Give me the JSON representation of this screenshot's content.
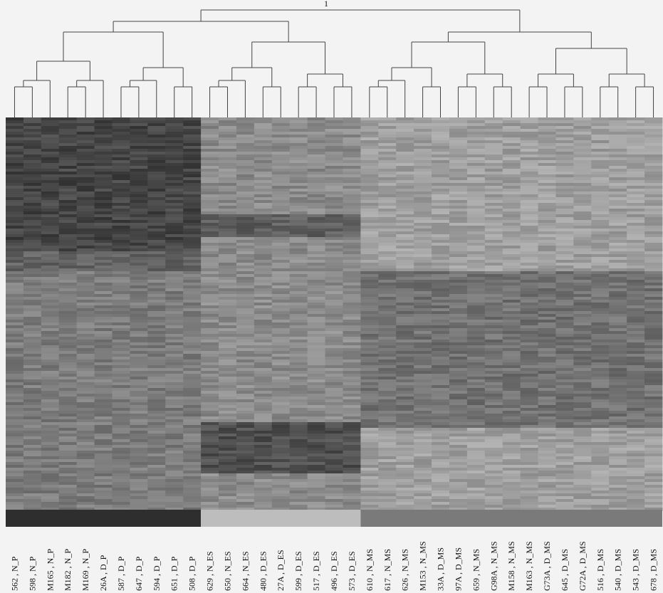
{
  "chart_data": {
    "type": "heatmap",
    "top_label": "1",
    "columns": [
      "562 , N_P",
      "598 , N_P",
      "M165 , N_P",
      "M182 , N_P",
      "M169 , N_P",
      "26A , D_P",
      "587 , D_P",
      "647 , D_P",
      "594 , D_P",
      "651 , D_P",
      "508 , D_P",
      "629 , N_ES",
      "650 , N_ES",
      "664 , N_ES",
      "480 , D_ES",
      "27A , D_ES",
      "599 , D_ES",
      "517 , D_ES",
      "496 , D_ES",
      "573 , D_ES",
      "610 , N_MS",
      "617 , N_MS",
      "626 , N_MS",
      "M153 , N_MS",
      "33A , D_MS",
      "97A , D_MS",
      "659 , N_MS",
      "G98A , N_MS",
      "M158 , N_MS",
      "M163 , N_MS",
      "G73A , D_MS",
      "645 , D_MS",
      "G72A , D_MS",
      "516 , D_MS",
      "540 , D_MS",
      "543 , D_MS",
      "678 , D_MS"
    ],
    "group_colors": {
      "P": "#2e2e2e",
      "ES": "#bdbdbd",
      "MS": "#7a7a7a"
    }
  }
}
